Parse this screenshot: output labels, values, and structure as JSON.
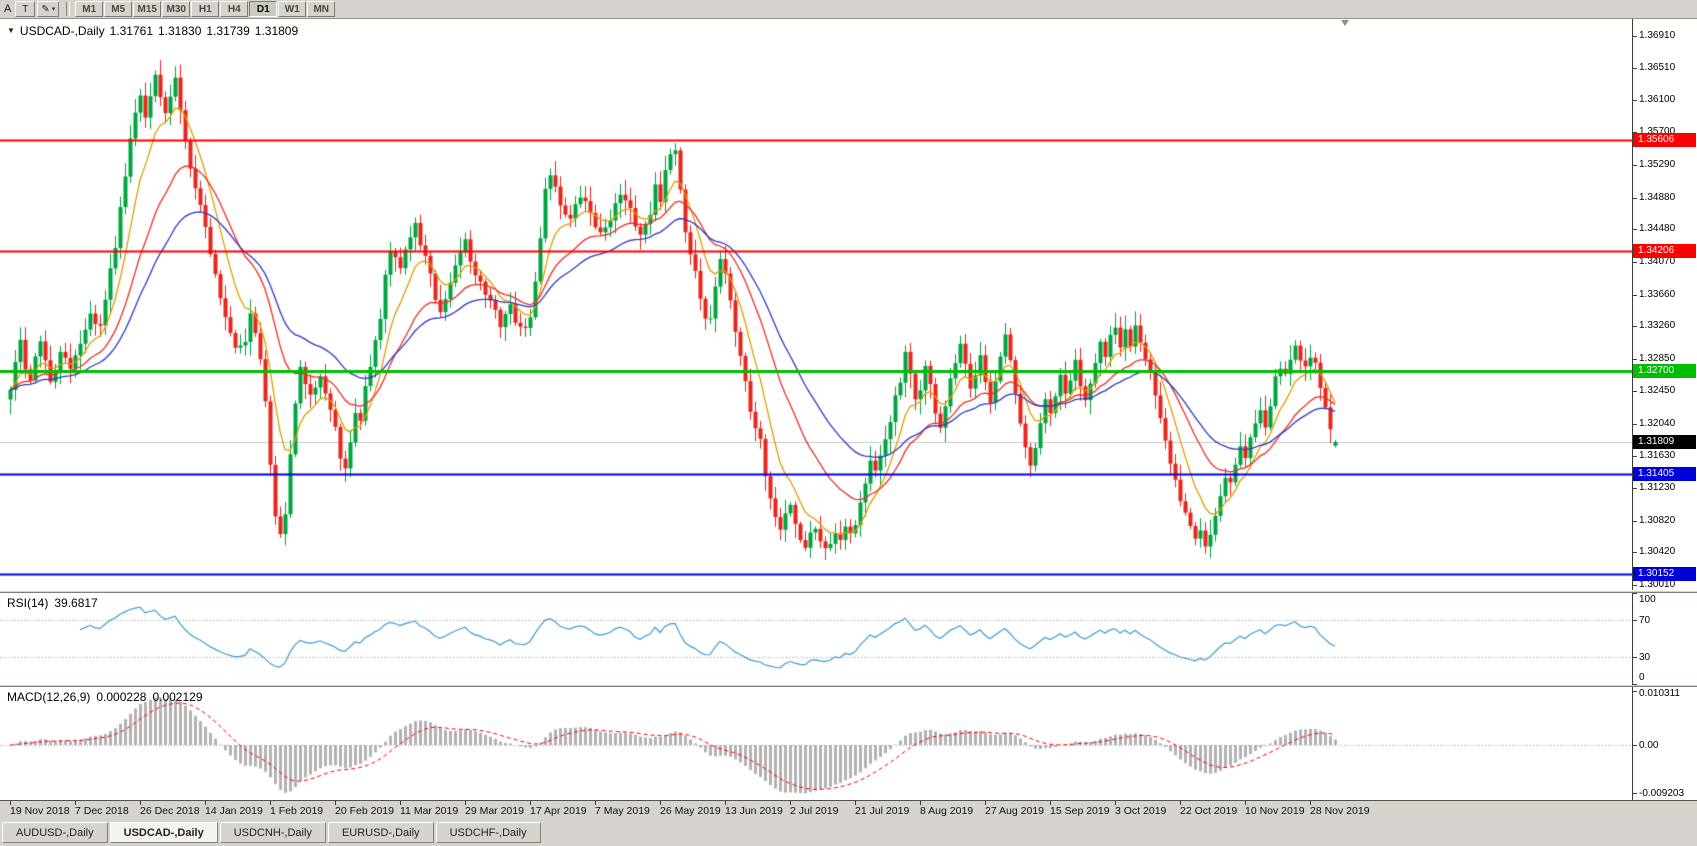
{
  "icons": {
    "dropdown": "▼",
    "pencil": "✎",
    "caret": "▾"
  },
  "toolbar": {
    "a_label": "A",
    "text_tool_label": "T",
    "timeframes": [
      {
        "label": "M1",
        "active": false
      },
      {
        "label": "M5",
        "active": false
      },
      {
        "label": "M15",
        "active": false
      },
      {
        "label": "M30",
        "active": false
      },
      {
        "label": "H1",
        "active": false
      },
      {
        "label": "H4",
        "active": false
      },
      {
        "label": "D1",
        "active": true
      },
      {
        "label": "W1",
        "active": false
      },
      {
        "label": "MN",
        "active": false
      }
    ]
  },
  "tabs": [
    {
      "label": "AUDUSD-,Daily",
      "active": false
    },
    {
      "label": "USDCAD-,Daily",
      "active": true
    },
    {
      "label": "USDCNH-,Daily",
      "active": false
    },
    {
      "label": "EURUSD-,Daily",
      "active": false
    },
    {
      "label": "USDCHF-,Daily",
      "active": false
    }
  ],
  "chart_data": {
    "type": "candlestick",
    "title": "USDCAD-,Daily",
    "symbol": "USDCAD",
    "timeframe": "Daily",
    "ohlc": {
      "open": "1.31761",
      "high": "1.31830",
      "low": "1.31739",
      "close": "1.31809"
    },
    "price_range": {
      "min": 1.29948,
      "max": 1.37124
    },
    "candle_count": 266,
    "bars_per_label": 13,
    "up_color": "#00a33f",
    "down_color": "#e6261c",
    "closes": [
      1.3245,
      1.3282,
      1.3305,
      1.327,
      1.3262,
      1.3288,
      1.331,
      1.3282,
      1.3252,
      1.327,
      1.3297,
      1.3282,
      1.327,
      1.3292,
      1.3308,
      1.3322,
      1.334,
      1.3328,
      1.3333,
      1.336,
      1.3395,
      1.343,
      1.3475,
      1.352,
      1.3565,
      1.36,
      1.362,
      1.3585,
      1.3615,
      1.3648,
      1.3618,
      1.359,
      1.3615,
      1.3635,
      1.36,
      1.356,
      1.353,
      1.3505,
      1.3478,
      1.345,
      1.342,
      1.339,
      1.3365,
      1.334,
      1.3315,
      1.3295,
      1.3302,
      1.331,
      1.3345,
      1.332,
      1.329,
      1.323,
      1.315,
      1.3085,
      1.306,
      1.3095,
      1.316,
      1.323,
      1.327,
      1.3258,
      1.3245,
      1.3255,
      1.3265,
      1.3242,
      1.322,
      1.3195,
      1.3165,
      1.3145,
      1.3175,
      1.322,
      1.3205,
      1.3255,
      1.3275,
      1.3305,
      1.334,
      1.3385,
      1.342,
      1.3408,
      1.34,
      1.3422,
      1.344,
      1.3455,
      1.343,
      1.3412,
      1.3395,
      1.336,
      1.334,
      1.3358,
      1.3375,
      1.3398,
      1.342,
      1.3435,
      1.341,
      1.3395,
      1.338,
      1.3368,
      1.3355,
      1.3342,
      1.333,
      1.3342,
      1.335,
      1.3335,
      1.332,
      1.3328,
      1.3335,
      1.338,
      1.344,
      1.35,
      1.352,
      1.35,
      1.348,
      1.347,
      1.346,
      1.3475,
      1.349,
      1.348,
      1.347,
      1.3455,
      1.344,
      1.3452,
      1.3465,
      1.3478,
      1.349,
      1.348,
      1.347,
      1.3455,
      1.344,
      1.3455,
      1.347,
      1.351,
      1.348,
      1.352,
      1.3545,
      1.355,
      1.35,
      1.345,
      1.342,
      1.339,
      1.336,
      1.333,
      1.334,
      1.338,
      1.341,
      1.3395,
      1.336,
      1.332,
      1.329,
      1.3255,
      1.322,
      1.32,
      1.318,
      1.314,
      1.311,
      1.3085,
      1.307,
      1.309,
      1.3105,
      1.308,
      1.306,
      1.305,
      1.3065,
      1.3075,
      1.306,
      1.3045,
      1.3055,
      1.307,
      1.306,
      1.308,
      1.3065,
      1.308,
      1.3105,
      1.313,
      1.3155,
      1.314,
      1.316,
      1.3185,
      1.321,
      1.3235,
      1.3255,
      1.329,
      1.3262,
      1.3235,
      1.325,
      1.3275,
      1.325,
      1.322,
      1.32,
      1.3225,
      1.3255,
      1.328,
      1.33,
      1.3275,
      1.3245,
      1.327,
      1.3295,
      1.326,
      1.323,
      1.3255,
      1.3285,
      1.331,
      1.328,
      1.324,
      1.32,
      1.317,
      1.315,
      1.3175,
      1.3205,
      1.323,
      1.3215,
      1.324,
      1.326,
      1.324,
      1.326,
      1.328,
      1.3255,
      1.3235,
      1.326,
      1.3285,
      1.3305,
      1.3285,
      1.331,
      1.332,
      1.33,
      1.332,
      1.3305,
      1.333,
      1.331,
      1.329,
      1.327,
      1.324,
      1.321,
      1.318,
      1.315,
      1.313,
      1.311,
      1.309,
      1.3075,
      1.306,
      1.307,
      1.305,
      1.3065,
      1.309,
      1.3115,
      1.314,
      1.313,
      1.3155,
      1.3175,
      1.316,
      1.3185,
      1.3205,
      1.3225,
      1.3205,
      1.323,
      1.3258,
      1.3278,
      1.3262,
      1.3285,
      1.3302,
      1.3288,
      1.3272,
      1.3292,
      1.3282,
      1.3252,
      1.3222,
      1.3196,
      1.31809
    ],
    "moving_averages": [
      {
        "period": 8,
        "color": "#e09c00"
      },
      {
        "period": 20,
        "color": "#ef2d23"
      },
      {
        "period": 34,
        "color": "#2c3ac8"
      }
    ],
    "levels": [
      {
        "price": 1.35606,
        "label": "1.35606",
        "color": "#fd0000",
        "thickness": 2
      },
      {
        "price": 1.34206,
        "label": "1.34206",
        "color": "#fd0000",
        "thickness": 2
      },
      {
        "price": 1.327,
        "label": "1.32700",
        "color": "#00bf00",
        "thickness": 3
      },
      {
        "price": 1.31405,
        "label": "1.31405",
        "color": "#0000d8",
        "thickness": 2
      },
      {
        "price": 1.30152,
        "label": "1.30152",
        "color": "#0000d8",
        "thickness": 2
      }
    ],
    "current_price": {
      "value": 1.31809,
      "label": "1.31809",
      "badge_color": "#000000",
      "line_color": "#c8c8c8"
    },
    "price_axis_ticks": [
      "1.36910",
      "1.36510",
      "1.36100",
      "1.35700",
      "1.35290",
      "1.34880",
      "1.34480",
      "1.34070",
      "1.33660",
      "1.33260",
      "1.32850",
      "1.32450",
      "1.32040",
      "1.31630",
      "1.31230",
      "1.30820",
      "1.30420",
      "1.30010"
    ],
    "date_labels": [
      "19 Nov 2018",
      "7 Dec 2018",
      "26 Dec 2018",
      "14 Jan 2019",
      "1 Feb 2019",
      "20 Feb 2019",
      "11 Mar 2019",
      "29 Mar 2019",
      "17 Apr 2019",
      "7 May 2019",
      "26 May 2019",
      "13 Jun 2019",
      "2 Jul 2019",
      "21 Jul 2019",
      "8 Aug 2019",
      "27 Aug 2019",
      "15 Sep 2019",
      "3 Oct 2019",
      "22 Oct 2019",
      "10 Nov 2019",
      "28 Nov 2019"
    ],
    "rsi": {
      "name": "RSI(14)",
      "value": "39.6817",
      "period": 14,
      "color": "#3f9bd8",
      "axis_labels": [
        "100",
        "70",
        "30",
        "0"
      ],
      "axis_values": [
        100,
        70,
        30,
        0
      ],
      "dotted_levels": [
        70,
        30
      ]
    },
    "macd": {
      "name": "MACD(12,26,9)",
      "main_value": "0.000228",
      "signal_value": "0.002129",
      "histogram_color": "#b2b2b2",
      "signal_color": "#ff0000",
      "axis_labels": [
        "0.010311",
        "0.00",
        "-0.009203"
      ],
      "axis_values": [
        0.010311,
        0,
        -0.009203
      ]
    }
  }
}
